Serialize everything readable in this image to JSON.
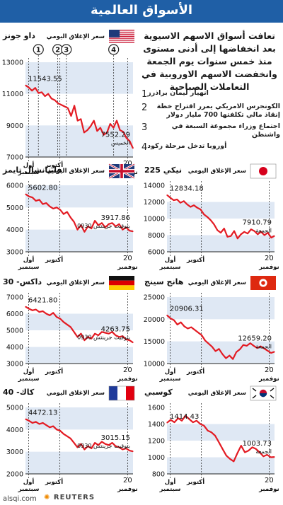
{
  "header": {
    "title": "الأسواق العالمية"
  },
  "intro": {
    "text": "تعافت أسواق الاسهم الاسيوية بعد انخفاضها إلى أدنى مستوى منذ خمس سنوات يوم الجمعة وانخفضت الاسهم الاوروبية في التعاملات الصباحية"
  },
  "events": [
    {
      "num": "1",
      "text": "انهيار ليمان براذرز"
    },
    {
      "num": "2",
      "text": "الكونجرس الامريكي يمرر اقتراح خطة إنقاذ مالي تكلفتها 700 مليار دولار"
    },
    {
      "num": "3",
      "text": "اجتماع وزراء مجموعة السبعة في واشنطن"
    },
    {
      "num": "4",
      "text": "أوروبا تدخل مرحلة ركود"
    }
  ],
  "common": {
    "close_label": "سعر الإغلاق اليومي",
    "x_start": "أول",
    "x_start_month": "سبتمبر",
    "x_mid": "أكتوبر",
    "x_end": "20",
    "x_end_month": "نوفمبر"
  },
  "colors": {
    "title_bar": "#1f5fa6",
    "line": "#e31b23",
    "band": "#dfe8f4",
    "axis": "#222222"
  },
  "footer": {
    "logo": "REUTERS",
    "watermark": "alsqi.com"
  },
  "chart_data": [
    {
      "id": "dow",
      "type": "line",
      "name": "داو جونز",
      "flag": "us-flag",
      "ylim": [
        7000,
        13000
      ],
      "yticks": [
        7000,
        9000,
        11000,
        13000
      ],
      "start_label": "11543.55",
      "end_label": "7552.29",
      "end_note": "الخميس",
      "event_markers": [
        "1",
        "2",
        "3",
        "4"
      ],
      "values": [
        11543.55,
        11400,
        11200,
        11380,
        11050,
        11100,
        10850,
        11000,
        10700,
        10600,
        10400,
        10300,
        10200,
        10100,
        9600,
        10250,
        9300,
        9400,
        8550,
        8700,
        8950,
        9300,
        8650,
        8850,
        8400,
        8550,
        9100,
        8850,
        9300,
        8700,
        8600,
        8200,
        8000,
        7552.29
      ]
    },
    {
      "id": "nikkei",
      "type": "line",
      "name": "نيكي 225",
      "flag": "japan-flag",
      "ylim": [
        6000,
        14000
      ],
      "yticks": [
        6000,
        8000,
        10000,
        12000,
        14000
      ],
      "start_label": "12834.18",
      "end_label": "7910.79",
      "end_note": "الجمعة",
      "values": [
        12834.18,
        12500,
        12200,
        12300,
        11900,
        12100,
        11700,
        11400,
        11600,
        11300,
        11100,
        10500,
        10200,
        9800,
        9300,
        8600,
        8300,
        8800,
        7800,
        7900,
        8500,
        7600,
        8100,
        8400,
        8200,
        8700,
        8500,
        8100,
        8400,
        8000,
        8300,
        7700,
        7910.79
      ]
    },
    {
      "id": "ftse",
      "type": "line",
      "name": "فاينانشال تايمز",
      "flag": "uk-flag",
      "ylim": [
        3000,
        6000
      ],
      "yticks": [
        3000,
        4000,
        5000,
        6000
      ],
      "start_label": "5602.80",
      "end_label": "3917.86",
      "end_note": "0930 بتوقيت جرينتش",
      "values": [
        5602.8,
        5500,
        5450,
        5300,
        5350,
        5150,
        5200,
        5050,
        4950,
        5000,
        4900,
        4700,
        4800,
        4550,
        4350,
        4000,
        4200,
        3900,
        4150,
        4050,
        4400,
        4200,
        4300,
        4100,
        4250,
        4300,
        4150,
        4250,
        4000,
        4100,
        3950,
        3917.86
      ]
    },
    {
      "id": "hangseng",
      "type": "line",
      "name": "هانج سينج",
      "flag": "hongkong-flag",
      "ylim": [
        10000,
        25000
      ],
      "yticks": [
        10000,
        15000,
        20000,
        25000
      ],
      "start_label": "20906.31",
      "end_label": "12659.20",
      "end_note": "الجمعة",
      "values": [
        20906.31,
        20200,
        19800,
        18800,
        19300,
        18400,
        17900,
        18200,
        17600,
        17000,
        16400,
        15200,
        14500,
        13800,
        12800,
        13300,
        12100,
        11200,
        11800,
        11000,
        12600,
        13200,
        14200,
        14000,
        14600,
        14000,
        13500,
        13900,
        13400,
        12900,
        12400,
        12659.2
      ]
    },
    {
      "id": "dax",
      "type": "line",
      "name": "داكس- 30",
      "flag": "germany-flag",
      "ylim": [
        3000,
        7000
      ],
      "yticks": [
        3000,
        4000,
        5000,
        6000,
        7000
      ],
      "start_label": "6421.80",
      "end_label": "4263.75",
      "end_note": "0930 بتوقيت جرينتش",
      "values": [
        6421.8,
        6300,
        6200,
        6250,
        6100,
        6150,
        6000,
        5900,
        6050,
        5800,
        5700,
        5500,
        5350,
        5200,
        4900,
        4600,
        4800,
        4400,
        4600,
        4500,
        4800,
        4700,
        4900,
        4850,
        4800,
        4900,
        4700,
        4600,
        4650,
        4450,
        4400,
        4263.75
      ]
    },
    {
      "id": "kospi",
      "type": "line",
      "name": "كوسبي",
      "flag": "korea-flag",
      "ylim": [
        800,
        1600
      ],
      "yticks": [
        800,
        1000,
        1200,
        1400,
        1600
      ],
      "start_label": "1414.43",
      "end_label": "1003.73",
      "end_note": "الجمعة",
      "values": [
        1414.43,
        1450,
        1420,
        1470,
        1440,
        1500,
        1460,
        1420,
        1440,
        1400,
        1380,
        1320,
        1300,
        1260,
        1180,
        1100,
        1020,
        980,
        950,
        1050,
        1140,
        1060,
        1080,
        1120,
        1100,
        1060,
        1010,
        1030,
        1000,
        1003.73
      ]
    },
    {
      "id": "cac",
      "type": "line",
      "name": "كاك- 40",
      "flag": "france-flag",
      "ylim": [
        2000,
        5000
      ],
      "yticks": [
        2000,
        3000,
        4000,
        5000
      ],
      "start_label": "4472.13",
      "end_label": "3015.15",
      "end_note": "0930 بتوقيت جرينتش",
      "values": [
        4472.13,
        4400,
        4300,
        4350,
        4250,
        4300,
        4200,
        4100,
        4150,
        4000,
        3950,
        3800,
        3700,
        3600,
        3400,
        3200,
        3350,
        3100,
        3250,
        3150,
        3400,
        3300,
        3450,
        3350,
        3300,
        3400,
        3250,
        3200,
        3100,
        3150,
        3050,
        3015.15
      ]
    }
  ]
}
